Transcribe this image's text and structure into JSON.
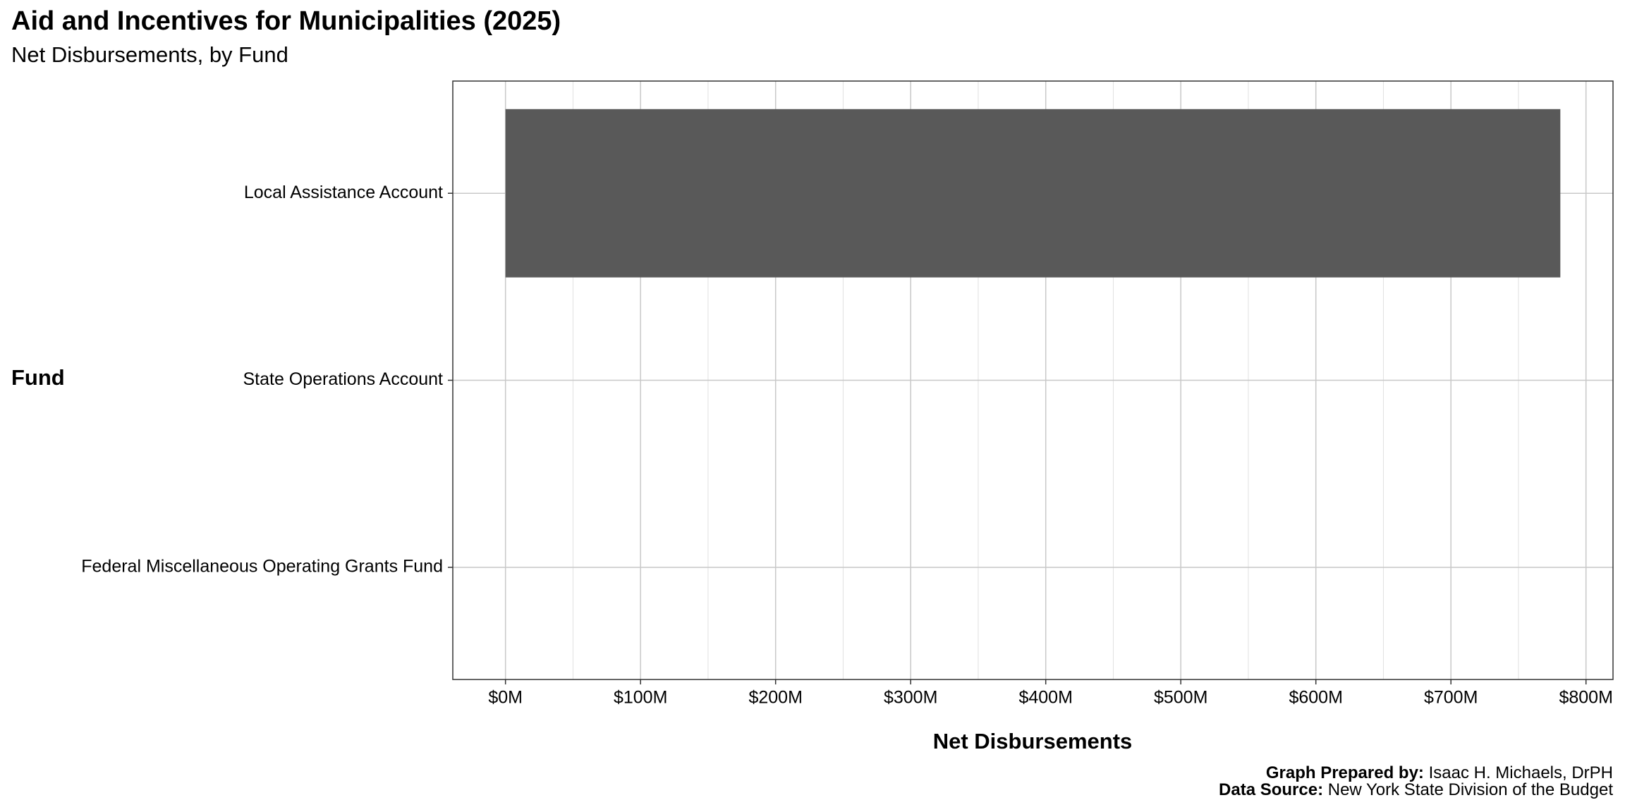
{
  "chart_data": {
    "type": "bar",
    "orientation": "horizontal",
    "title": "Aid and Incentives for Municipalities (2025)",
    "subtitle": "Net Disbursements, by Fund",
    "x_label": "Net Disbursements",
    "y_label": "Fund",
    "categories": [
      "Local Assistance Account",
      "State Operations Account",
      "Federal Miscellaneous Operating Grants Fund"
    ],
    "values": [
      781000000,
      0,
      0
    ],
    "color": "#595959",
    "xlim": [
      -39000000,
      820000000
    ],
    "xticks": [
      {
        "value": 0,
        "label": "$0M"
      },
      {
        "value": 100000000,
        "label": "$100M"
      },
      {
        "value": 200000000,
        "label": "$200M"
      },
      {
        "value": 300000000,
        "label": "$300M"
      },
      {
        "value": 400000000,
        "label": "$400M"
      },
      {
        "value": 500000000,
        "label": "$500M"
      },
      {
        "value": 600000000,
        "label": "$600M"
      },
      {
        "value": 700000000,
        "label": "$700M"
      },
      {
        "value": 800000000,
        "label": "$800M"
      }
    ],
    "x_minor_ticks": [
      50000000,
      150000000,
      250000000,
      350000000,
      450000000,
      550000000,
      650000000,
      750000000
    ],
    "grid": true,
    "caption": [
      {
        "label": "Graph Prepared by:",
        "text": "Isaac H. Michaels, DrPH"
      },
      {
        "label": "Data Source:",
        "text": "New York State Division of the Budget"
      }
    ]
  }
}
